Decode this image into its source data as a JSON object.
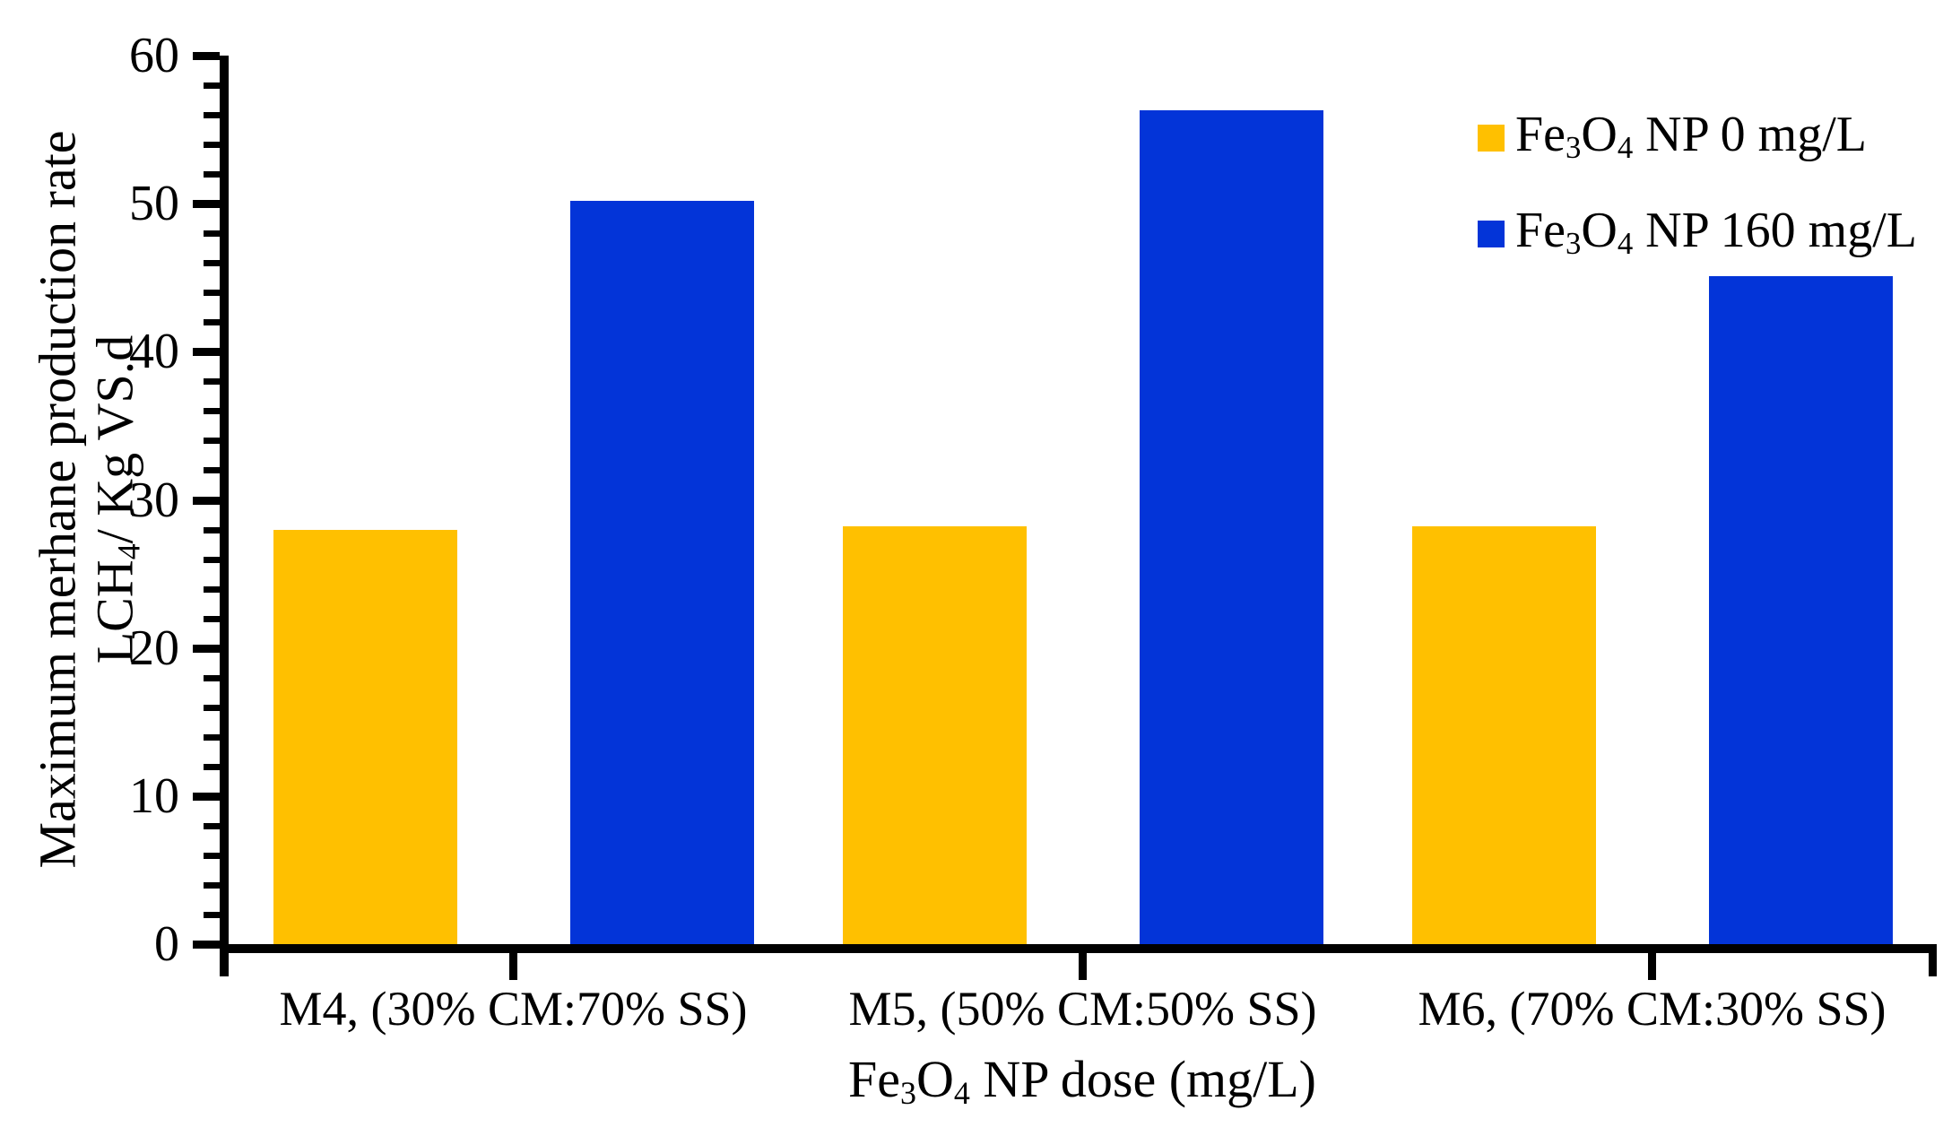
{
  "chart_data": {
    "type": "bar",
    "title": "",
    "categories": [
      "M4, (30% CM:70% SS)",
      "M5, (50% CM:50% SS)",
      "M6, (70% CM:30% SS)"
    ],
    "series": [
      {
        "name": "Fe₃O₄ NP 0 mg/L",
        "color": "#FFC000",
        "values": [
          28.0,
          28.2,
          28.2
        ]
      },
      {
        "name": "Fe₃O₄ NP 160 mg/L",
        "color": "#0334D8",
        "values": [
          50.2,
          56.3,
          45.1
        ]
      }
    ],
    "xlabel": "Fe₃O₄ NP dose (mg/L)",
    "ylabel_line1": "Maximum merhane production rate",
    "ylabel_line2": "LCH₄/ Kg VS.d",
    "y_tick_labels": [
      "0",
      "10",
      "20",
      "30",
      "40",
      "50",
      "60"
    ],
    "ylim": [
      0,
      60
    ],
    "y_major_unit": 10,
    "y_minor_unit": 2,
    "grid": false,
    "legend_position": "top-right-inside",
    "axis_color": "#000000",
    "background_color": "#FFFFFF"
  }
}
